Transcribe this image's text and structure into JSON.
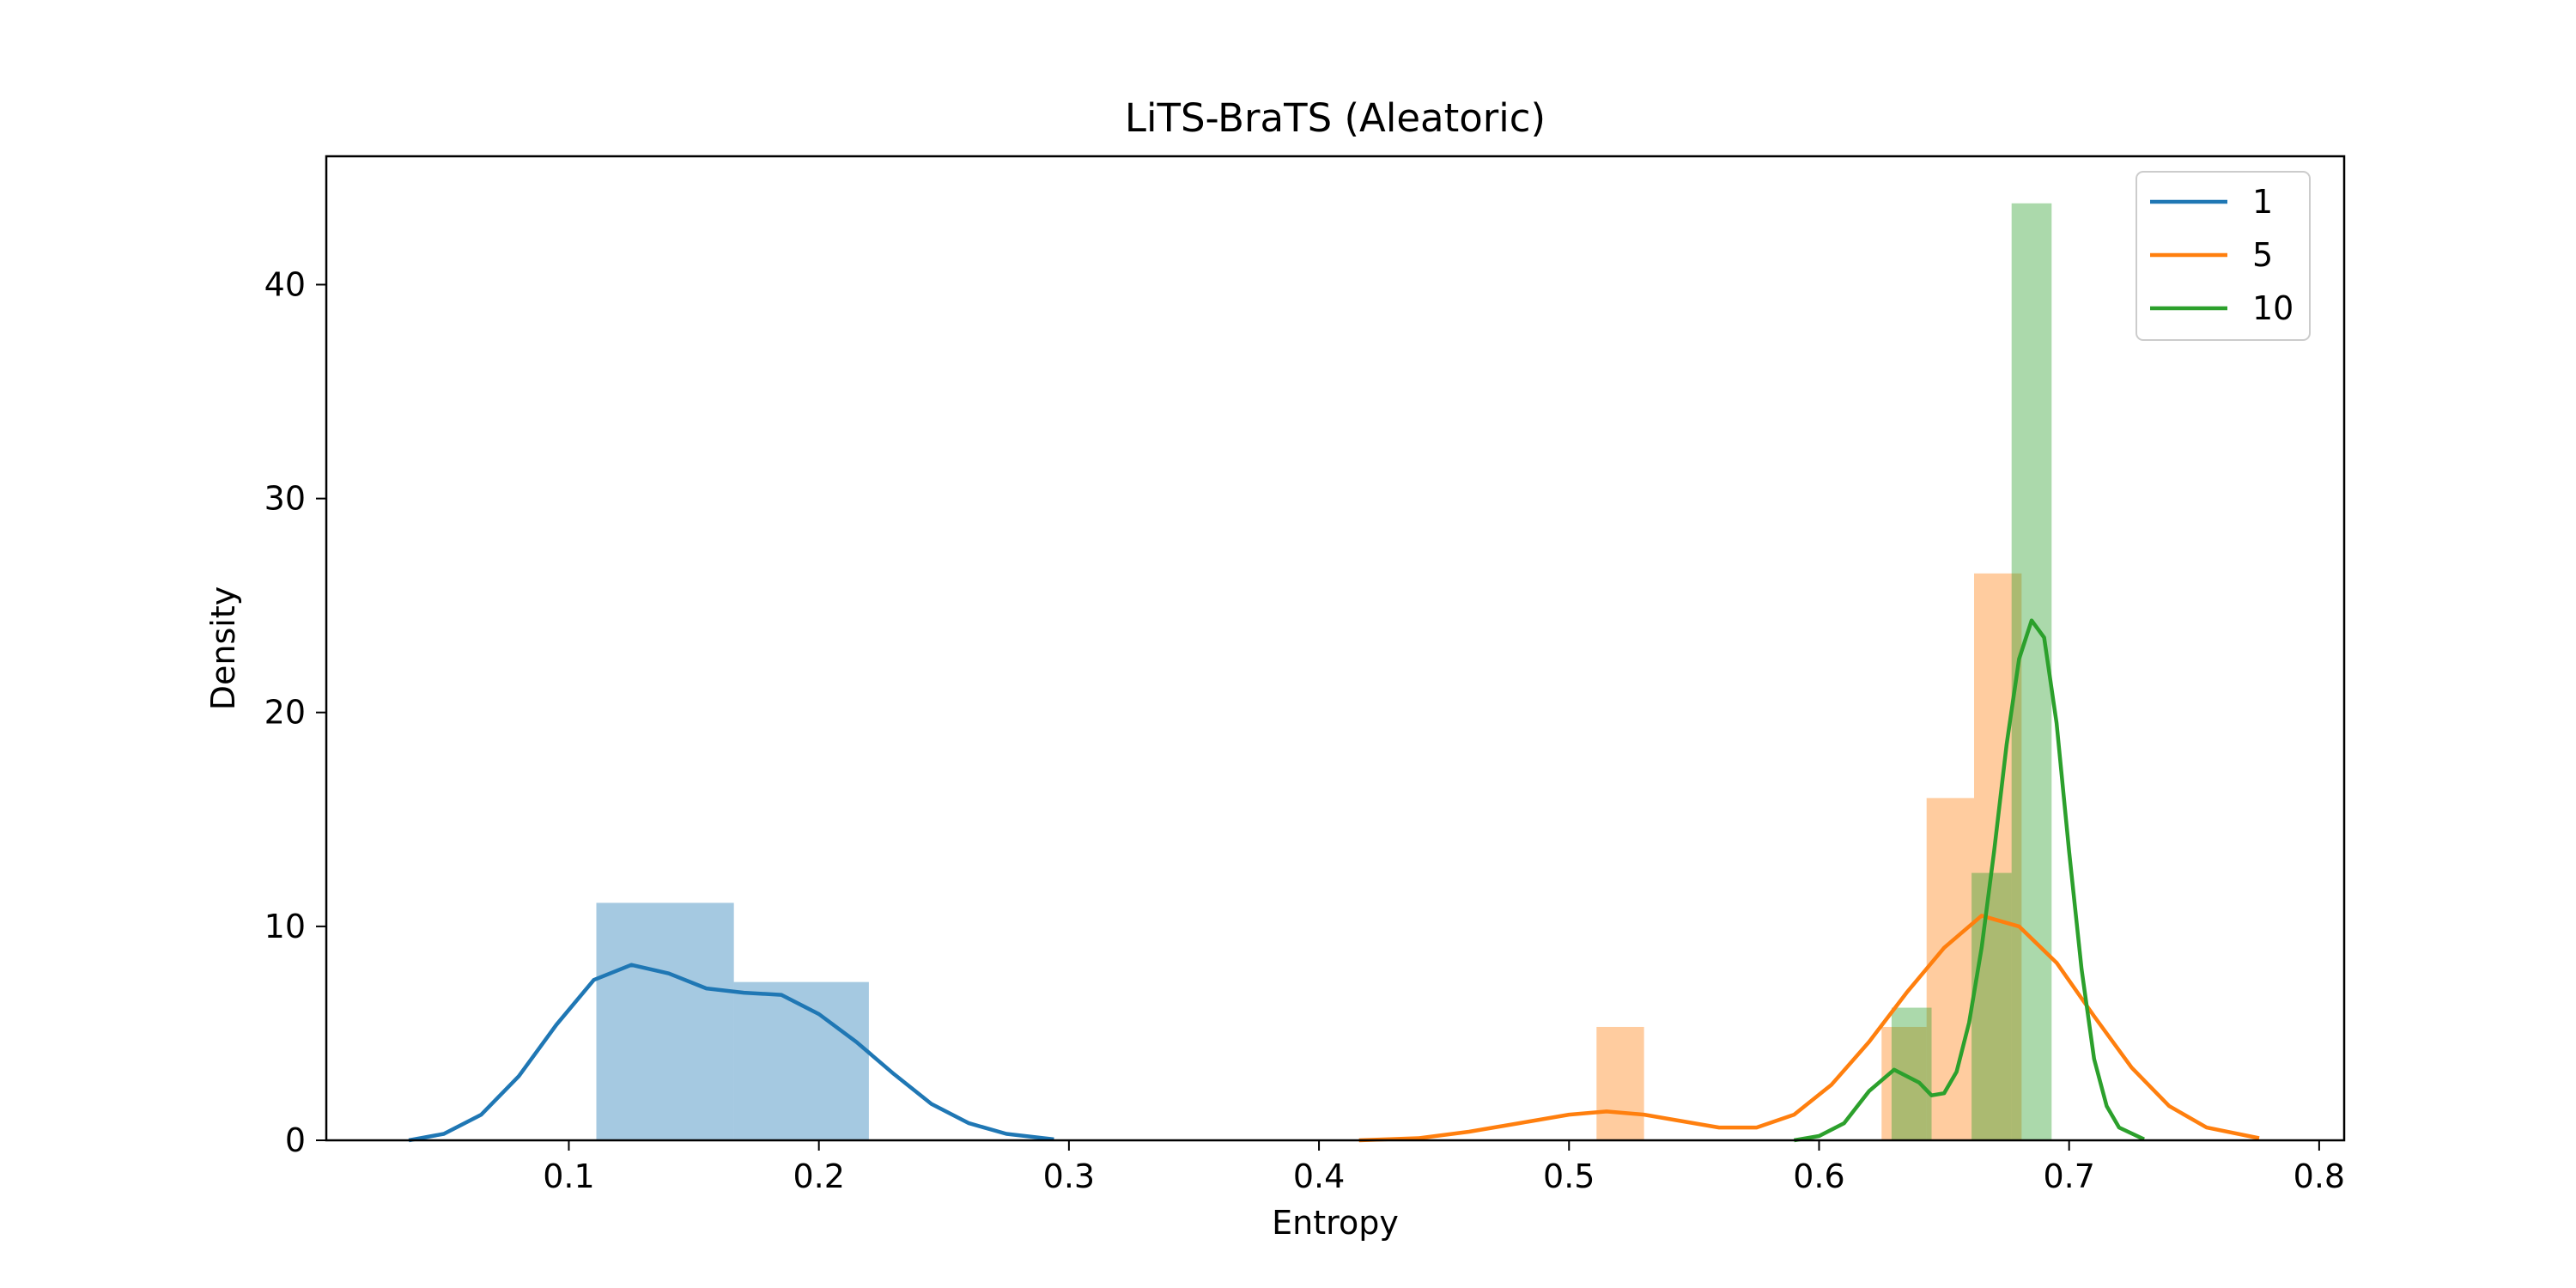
{
  "chart_data": {
    "type": "histogram",
    "title": "LiTS-BraTS (Aleatoric)",
    "xlabel": "Entropy",
    "ylabel": "Density",
    "xlim": [
      0.003,
      0.81
    ],
    "ylim": [
      0,
      46
    ],
    "xticks": [
      0.1,
      0.2,
      0.3,
      0.4,
      0.5,
      0.6,
      0.7,
      0.8
    ],
    "xtick_labels": [
      "0.1",
      "0.2",
      "0.3",
      "0.4",
      "0.5",
      "0.6",
      "0.7",
      "0.8"
    ],
    "yticks": [
      0,
      10,
      20,
      30,
      40
    ],
    "ytick_labels": [
      "0",
      "10",
      "20",
      "30",
      "40"
    ],
    "grid": false,
    "legend_position": "top-right",
    "series": [
      {
        "name": "1",
        "color": "#1f77b4",
        "bars": [
          {
            "x0": 0.111,
            "x1": 0.166,
            "height": 11.1
          },
          {
            "x0": 0.166,
            "x1": 0.22,
            "height": 7.4
          }
        ],
        "kde": [
          [
            0.036,
            0.0
          ],
          [
            0.05,
            0.3
          ],
          [
            0.065,
            1.2
          ],
          [
            0.08,
            3.0
          ],
          [
            0.095,
            5.4
          ],
          [
            0.11,
            7.5
          ],
          [
            0.125,
            8.2
          ],
          [
            0.14,
            7.8
          ],
          [
            0.155,
            7.1
          ],
          [
            0.17,
            6.9
          ],
          [
            0.185,
            6.8
          ],
          [
            0.2,
            5.9
          ],
          [
            0.215,
            4.6
          ],
          [
            0.23,
            3.1
          ],
          [
            0.245,
            1.7
          ],
          [
            0.26,
            0.8
          ],
          [
            0.275,
            0.3
          ],
          [
            0.294,
            0.05
          ]
        ]
      },
      {
        "name": "5",
        "color": "#ff7f0e",
        "bars": [
          {
            "x0": 0.511,
            "x1": 0.53,
            "height": 5.3
          },
          {
            "x0": 0.625,
            "x1": 0.643,
            "height": 5.3
          },
          {
            "x0": 0.643,
            "x1": 0.662,
            "height": 16.0
          },
          {
            "x0": 0.662,
            "x1": 0.681,
            "height": 26.5
          }
        ],
        "kde": [
          [
            0.416,
            0.0
          ],
          [
            0.44,
            0.1
          ],
          [
            0.46,
            0.4
          ],
          [
            0.48,
            0.8
          ],
          [
            0.5,
            1.2
          ],
          [
            0.515,
            1.35
          ],
          [
            0.53,
            1.2
          ],
          [
            0.545,
            0.9
          ],
          [
            0.56,
            0.6
          ],
          [
            0.575,
            0.6
          ],
          [
            0.59,
            1.2
          ],
          [
            0.605,
            2.6
          ],
          [
            0.62,
            4.6
          ],
          [
            0.635,
            6.9
          ],
          [
            0.65,
            9.0
          ],
          [
            0.665,
            10.5
          ],
          [
            0.68,
            10.0
          ],
          [
            0.695,
            8.3
          ],
          [
            0.71,
            5.8
          ],
          [
            0.725,
            3.4
          ],
          [
            0.74,
            1.6
          ],
          [
            0.755,
            0.6
          ],
          [
            0.776,
            0.1
          ]
        ]
      },
      {
        "name": "10",
        "color": "#2ca02c",
        "bars": [
          {
            "x0": 0.629,
            "x1": 0.645,
            "height": 6.2
          },
          {
            "x0": 0.661,
            "x1": 0.677,
            "height": 12.5
          },
          {
            "x0": 0.677,
            "x1": 0.693,
            "height": 43.8
          }
        ],
        "kde": [
          [
            0.59,
            0.0
          ],
          [
            0.6,
            0.2
          ],
          [
            0.61,
            0.8
          ],
          [
            0.62,
            2.3
          ],
          [
            0.63,
            3.3
          ],
          [
            0.64,
            2.7
          ],
          [
            0.645,
            2.1
          ],
          [
            0.65,
            2.2
          ],
          [
            0.655,
            3.2
          ],
          [
            0.66,
            5.5
          ],
          [
            0.665,
            9.0
          ],
          [
            0.67,
            13.5
          ],
          [
            0.675,
            18.5
          ],
          [
            0.68,
            22.5
          ],
          [
            0.685,
            24.3
          ],
          [
            0.69,
            23.5
          ],
          [
            0.695,
            19.5
          ],
          [
            0.7,
            13.5
          ],
          [
            0.705,
            8.0
          ],
          [
            0.71,
            3.8
          ],
          [
            0.715,
            1.6
          ],
          [
            0.72,
            0.6
          ],
          [
            0.73,
            0.05
          ]
        ]
      }
    ]
  }
}
